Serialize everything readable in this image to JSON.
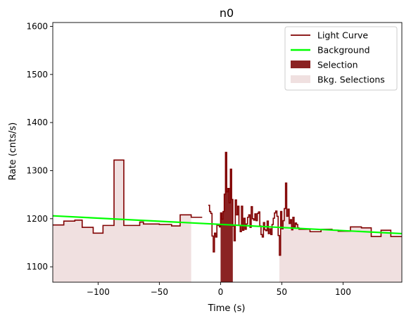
{
  "chart_data": {
    "type": "line",
    "title": "n0",
    "xlabel": "Time (s)",
    "ylabel": "Rate (cnts/s)",
    "xlim": [
      -137,
      148
    ],
    "ylim": [
      1068,
      1608
    ],
    "xticks": [
      -100,
      -50,
      0,
      50,
      100
    ],
    "yticks": [
      1100,
      1200,
      1300,
      1400,
      1500,
      1600
    ],
    "xtick_labels": [
      "−100",
      "−50",
      "0",
      "50",
      "100"
    ],
    "ytick_labels": [
      "1100",
      "1200",
      "1300",
      "1400",
      "1500",
      "1600"
    ],
    "grid": false,
    "legend_position": "top-right",
    "legend": [
      {
        "label": "Light Curve",
        "kind": "line",
        "color": "#800000"
      },
      {
        "label": "Background",
        "kind": "line",
        "color": "#00ff00"
      },
      {
        "label": "Selection",
        "kind": "patch",
        "color": "#8b2323"
      },
      {
        "label": "Bkg. Selections",
        "kind": "patch",
        "color": "#f0e0e0"
      }
    ],
    "colors": {
      "light_curve": "#800000",
      "background": "#00ff00",
      "selection": "#8b2323",
      "bkg_selection": "#f0e0e0"
    },
    "light_curve_bins": [
      [
        -137,
        -128,
        1187
      ],
      [
        -128,
        -119,
        1195
      ],
      [
        -119,
        -113,
        1197
      ],
      [
        -113,
        -104,
        1182
      ],
      [
        -104,
        -96,
        1170
      ],
      [
        -96,
        -87,
        1186
      ],
      [
        -87,
        -79,
        1322
      ],
      [
        -79,
        -66,
        1186
      ],
      [
        -66,
        -63,
        1193
      ],
      [
        -63,
        -50,
        1189
      ],
      [
        -50,
        -40,
        1188
      ],
      [
        -40,
        -33,
        1185
      ],
      [
        -33,
        -24,
        1208
      ],
      [
        -24,
        -15,
        1203
      ],
      [
        -10,
        -9,
        1228
      ],
      [
        -9,
        -8,
        1215
      ],
      [
        -8,
        -7,
        1211
      ],
      [
        -7,
        -6,
        1164
      ],
      [
        -6,
        -5,
        1131
      ],
      [
        -5,
        -4,
        1170
      ],
      [
        -4,
        -3,
        1162
      ],
      [
        -3,
        -2,
        1188
      ],
      [
        -2,
        -1,
        1186
      ],
      [
        -1,
        0,
        1183
      ],
      [
        0,
        1,
        1212
      ],
      [
        1,
        2,
        1199
      ],
      [
        2,
        3,
        1215
      ],
      [
        3,
        4,
        1251
      ],
      [
        4,
        5,
        1338
      ],
      [
        5,
        6,
        1256
      ],
      [
        6,
        7,
        1263
      ],
      [
        7,
        8,
        1233
      ],
      [
        8,
        9,
        1303
      ],
      [
        9,
        10,
        1240
      ],
      [
        10,
        11,
        1185
      ],
      [
        11,
        12,
        1154
      ],
      [
        12,
        13,
        1239
      ],
      [
        13,
        14,
        1208
      ],
      [
        14,
        15,
        1226
      ],
      [
        15,
        16,
        1186
      ],
      [
        16,
        17,
        1173
      ],
      [
        17,
        18,
        1226
      ],
      [
        18,
        19,
        1176
      ],
      [
        19,
        20,
        1201
      ],
      [
        20,
        21,
        1178
      ],
      [
        21,
        22,
        1189
      ],
      [
        22,
        23,
        1203
      ],
      [
        23,
        24,
        1208
      ],
      [
        24,
        25,
        1182
      ],
      [
        25,
        26,
        1225
      ],
      [
        26,
        27,
        1200
      ],
      [
        27,
        28,
        1197
      ],
      [
        28,
        29,
        1210
      ],
      [
        29,
        30,
        1196
      ],
      [
        30,
        31,
        1211
      ],
      [
        31,
        32,
        1214
      ],
      [
        32,
        33,
        1185
      ],
      [
        33,
        34,
        1167
      ],
      [
        34,
        35,
        1162
      ],
      [
        35,
        36,
        1192
      ],
      [
        36,
        37,
        1177
      ],
      [
        37,
        38,
        1175
      ],
      [
        38,
        39,
        1195
      ],
      [
        39,
        40,
        1169
      ],
      [
        40,
        41,
        1179
      ],
      [
        41,
        42,
        1167
      ],
      [
        42,
        43,
        1188
      ],
      [
        43,
        44,
        1201
      ],
      [
        44,
        45,
        1212
      ],
      [
        45,
        46,
        1216
      ],
      [
        46,
        47,
        1205
      ],
      [
        47,
        48,
        1165
      ],
      [
        48,
        49,
        1124
      ],
      [
        49,
        50,
        1215
      ],
      [
        50,
        51,
        1179
      ],
      [
        51,
        52,
        1196
      ],
      [
        52,
        53,
        1221
      ],
      [
        53,
        54,
        1274
      ],
      [
        54,
        55,
        1205
      ],
      [
        55,
        56,
        1220
      ],
      [
        56,
        57,
        1190
      ],
      [
        57,
        58,
        1198
      ],
      [
        58,
        59,
        1177
      ],
      [
        59,
        60,
        1203
      ],
      [
        60,
        61,
        1183
      ],
      [
        61,
        62,
        1191
      ],
      [
        62,
        63,
        1188
      ],
      [
        63,
        64,
        1181
      ],
      [
        64,
        73,
        1178
      ],
      [
        73,
        82,
        1173
      ],
      [
        82,
        91,
        1178
      ],
      [
        91,
        96,
        1176
      ],
      [
        96,
        106,
        1174
      ],
      [
        106,
        115,
        1183
      ],
      [
        115,
        123,
        1181
      ],
      [
        123,
        131,
        1163
      ],
      [
        131,
        139,
        1176
      ],
      [
        139,
        148,
        1163
      ]
    ],
    "background_line": {
      "x": [
        -137,
        148
      ],
      "y": [
        1206,
        1169
      ]
    },
    "selection_range": [
      0,
      10
    ],
    "bkg_selection_ranges": [
      [
        -137,
        -24
      ],
      [
        48,
        148
      ]
    ]
  }
}
